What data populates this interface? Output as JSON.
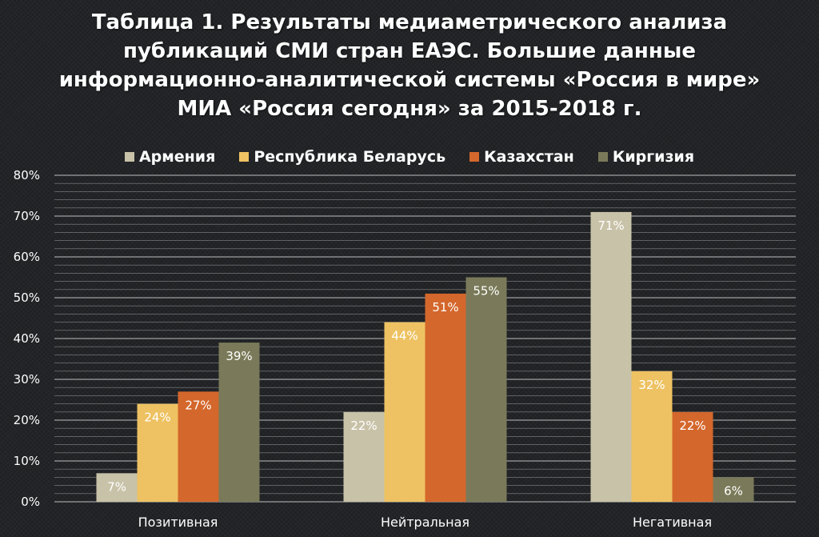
{
  "title": "Таблица 1. Результаты медиаметрического анализа публикаций СМИ стран ЕАЭС. Большие данные информационно-аналитической системы «Россия в мире» МИА «Россия сегодня» за 2015-2018 г.",
  "colors": {
    "armenia": "#c8c2a8",
    "belarus": "#eec262",
    "kazakhstan": "#d4672c",
    "kyrgyzstan": "#7a7a5a",
    "grid": "#d9d9d9",
    "text": "#ffffff"
  },
  "chart_data": {
    "type": "bar",
    "title": "Таблица 1. Результаты медиаметрического анализа публикаций СМИ стран ЕАЭС. Большие данные информационно-аналитической системы «Россия в мире» МИА «Россия сегодня» за 2015-2018 г.",
    "categories": [
      "Позитивная",
      "Нейтральная",
      "Негативная"
    ],
    "series": [
      {
        "name": "Армения",
        "values": [
          7,
          22,
          71
        ],
        "color": "#c8c2a8"
      },
      {
        "name": "Республика Беларусь",
        "values": [
          24,
          44,
          32
        ],
        "color": "#eec262"
      },
      {
        "name": "Казахстан",
        "values": [
          27,
          51,
          22
        ],
        "color": "#d4672c"
      },
      {
        "name": "Киргизия",
        "values": [
          39,
          55,
          6
        ],
        "color": "#7a7a5a"
      }
    ],
    "ylim": [
      0,
      80
    ],
    "yticks": [
      "0%",
      "10%",
      "20%",
      "30%",
      "40%",
      "50%",
      "60%",
      "70%",
      "80%"
    ],
    "value_suffix": "%",
    "grid": true,
    "legend": "top-center",
    "xlabel": "",
    "ylabel": ""
  }
}
